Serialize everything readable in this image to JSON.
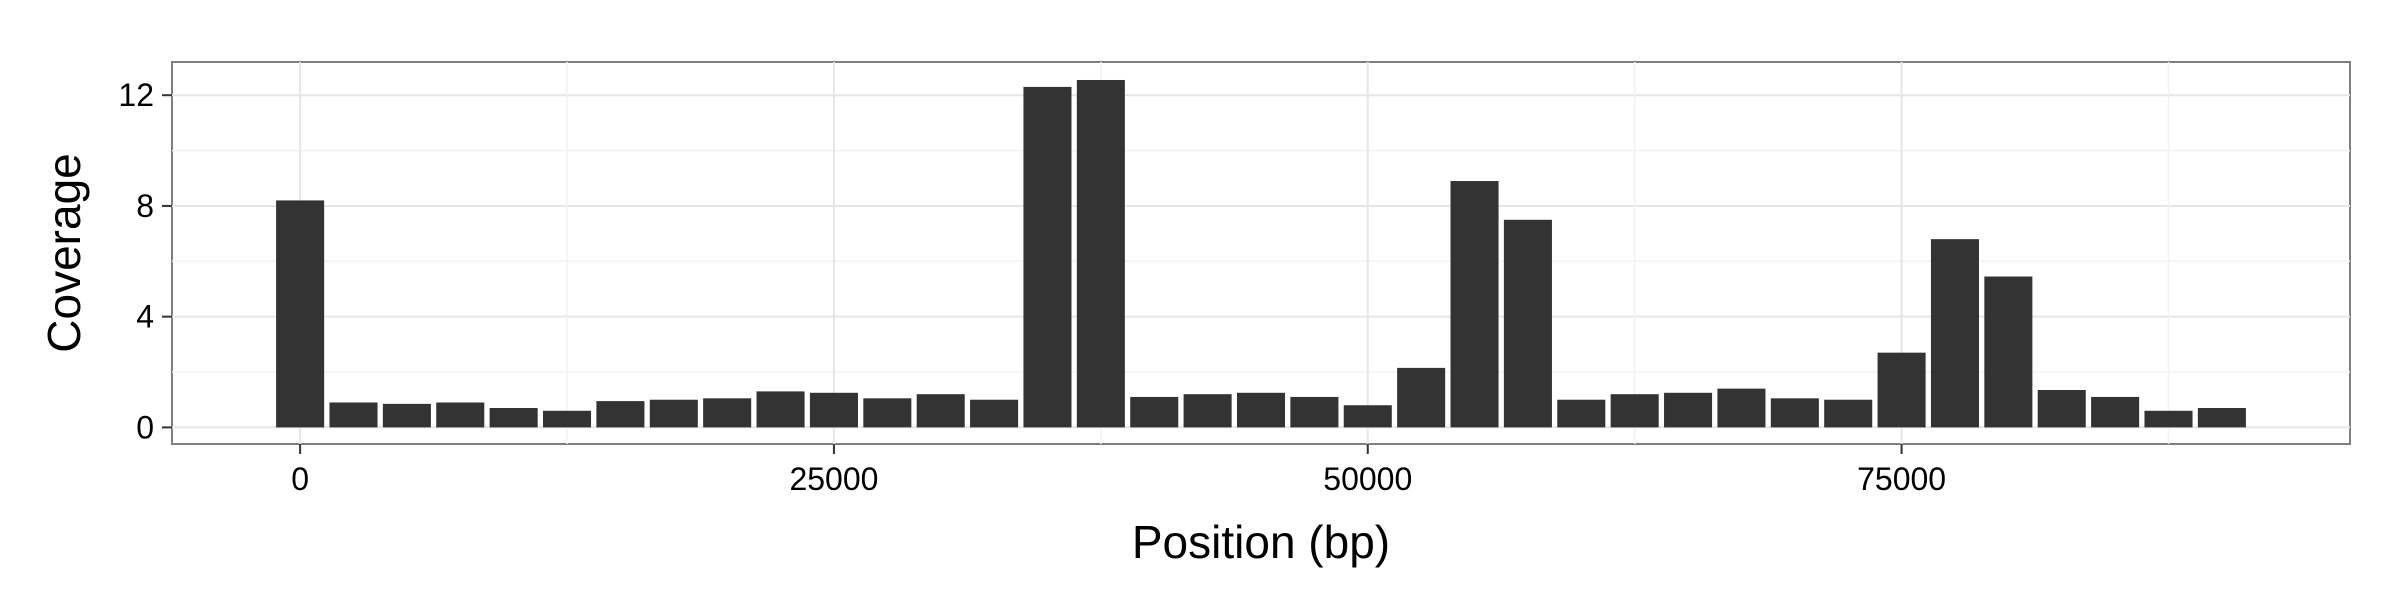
{
  "chart_data": {
    "type": "bar",
    "title": "",
    "xlabel": "Position (bp)",
    "ylabel": "Coverage",
    "xlim": [
      -6000,
      96000
    ],
    "ylim": [
      -0.6,
      13.2
    ],
    "x_ticks": [
      0,
      25000,
      50000,
      75000
    ],
    "x_tick_labels": [
      "0",
      "25000",
      "50000",
      "75000"
    ],
    "y_ticks": [
      0,
      4,
      8,
      12
    ],
    "y_tick_labels": [
      "0",
      "4",
      "8",
      "12"
    ],
    "grid": true,
    "bar_width": 2250,
    "bar_color": "#333333",
    "x": [
      0,
      2500,
      5000,
      7500,
      10000,
      12500,
      15000,
      17500,
      20000,
      22500,
      25000,
      27500,
      30000,
      32500,
      35000,
      37500,
      40000,
      42500,
      45000,
      47500,
      50000,
      52500,
      55000,
      57500,
      60000,
      62500,
      65000,
      67500,
      70000,
      72500,
      75000,
      77500,
      80000,
      82500,
      85000,
      87500,
      90000
    ],
    "values": [
      8.2,
      0.9,
      0.85,
      0.9,
      0.7,
      0.6,
      0.95,
      1.0,
      1.05,
      1.3,
      1.25,
      1.05,
      1.2,
      1.0,
      12.3,
      12.55,
      1.1,
      1.2,
      1.25,
      1.1,
      0.8,
      2.15,
      8.9,
      7.5,
      1.0,
      1.2,
      1.25,
      1.4,
      1.05,
      1.0,
      2.7,
      6.8,
      5.45,
      1.35,
      1.1,
      0.6,
      0.7
    ]
  }
}
